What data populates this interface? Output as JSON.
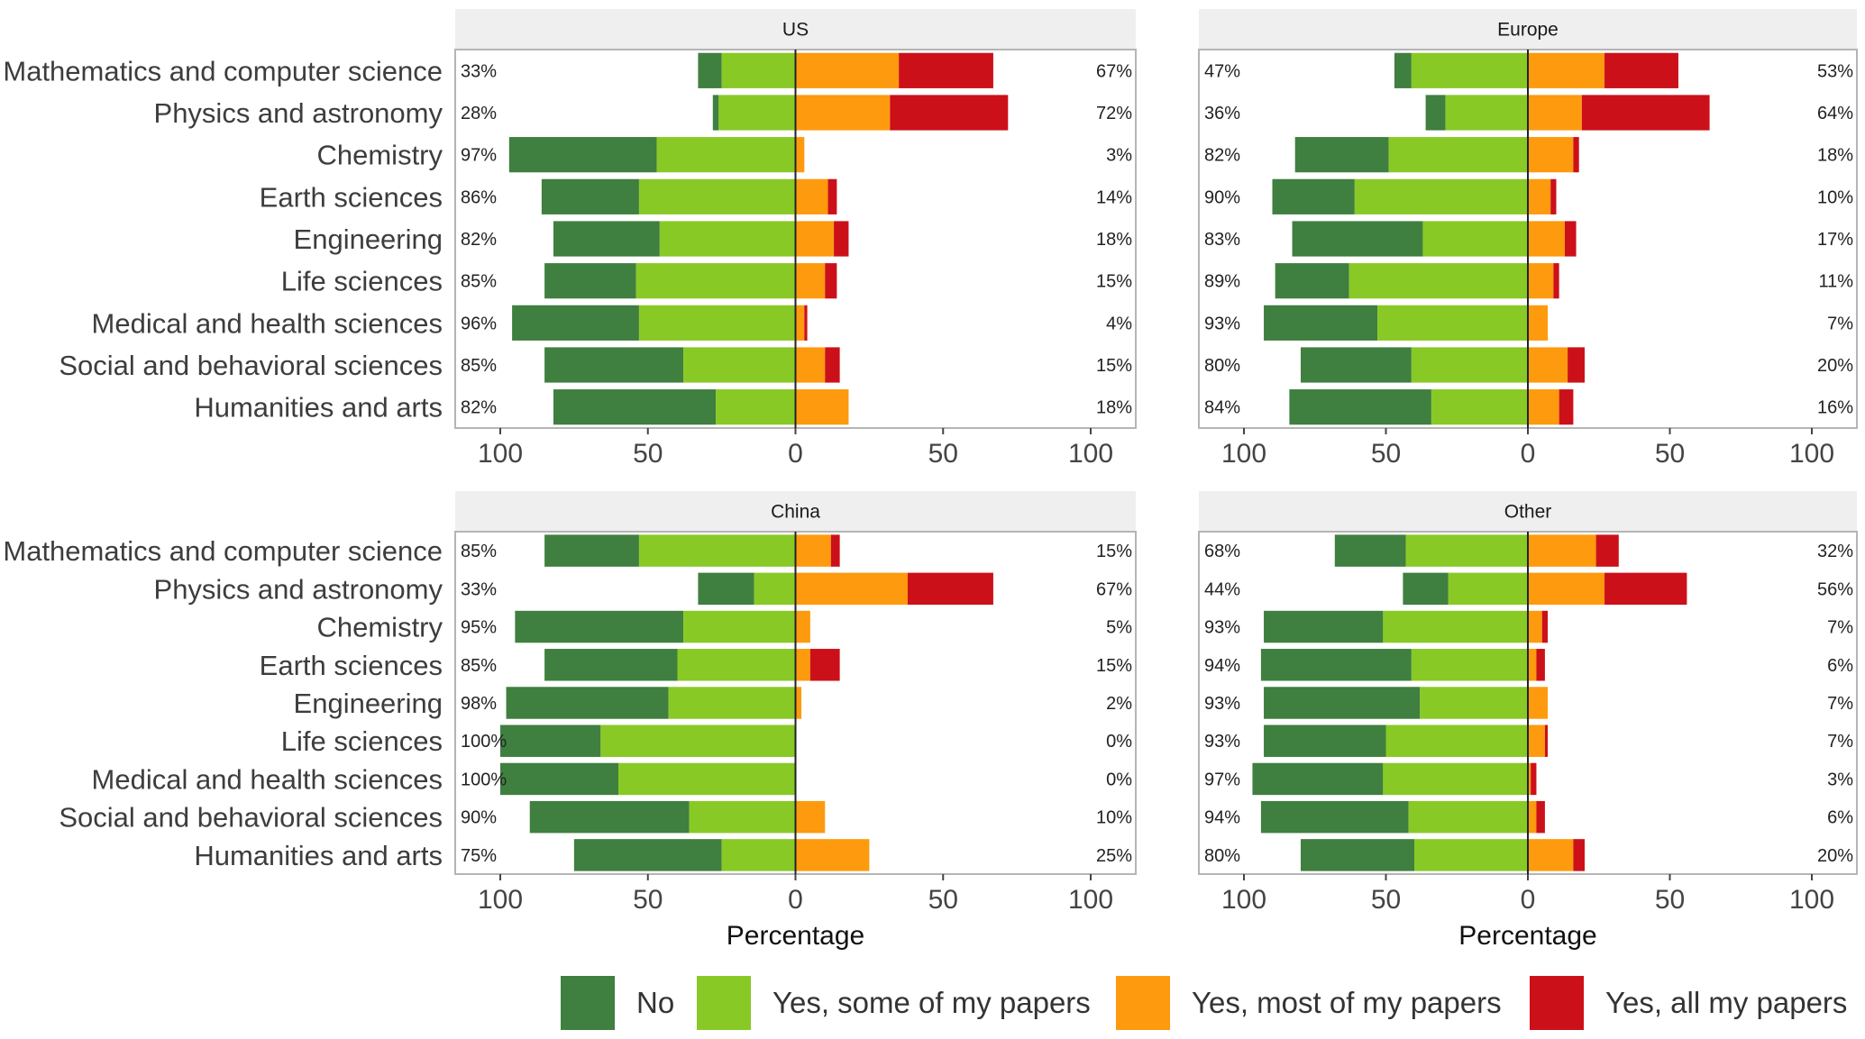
{
  "chart_data": {
    "type": "bar",
    "orientation": "horizontal-diverging",
    "xlabel": "Percentage",
    "xlim": [
      -100,
      100
    ],
    "x_ticks": [
      -100,
      -50,
      0,
      50,
      100
    ],
    "x_tick_labels": [
      "100",
      "50",
      "0",
      "50",
      "100"
    ],
    "categories": [
      "Mathematics and computer science",
      "Physics and astronomy",
      "Chemistry",
      "Earth sciences",
      "Engineering",
      "Life sciences",
      "Medical and health sciences",
      "Social and behavioral sciences",
      "Humanities and arts"
    ],
    "legend": {
      "placement": "bottom",
      "entries": [
        {
          "label": "No",
          "color": "#3f7f3f"
        },
        {
          "label": "Yes, some of my papers",
          "color": "#88c926"
        },
        {
          "label": "Yes, most of my papers",
          "color": "#fd9a0e"
        },
        {
          "label": "Yes, all my papers",
          "color": "#cc1019"
        }
      ]
    },
    "panels": [
      {
        "name": "US",
        "left_labels": [
          "33%",
          "28%",
          "97%",
          "86%",
          "82%",
          "85%",
          "96%",
          "85%",
          "82%"
        ],
        "right_labels": [
          "67%",
          "72%",
          "3%",
          "14%",
          "18%",
          "15%",
          "4%",
          "15%",
          "18%"
        ],
        "series": [
          {
            "name": "No",
            "values": [
              8,
              2,
              50,
              33,
              36,
              31,
              43,
              47,
              55
            ]
          },
          {
            "name": "Yes, some of my papers",
            "values": [
              25,
              26,
              47,
              53,
              46,
              54,
              53,
              38,
              27
            ]
          },
          {
            "name": "Yes, most of my papers",
            "values": [
              35,
              32,
              3,
              11,
              13,
              10,
              3,
              10,
              18
            ]
          },
          {
            "name": "Yes, all my papers",
            "values": [
              32,
              40,
              0,
              3,
              5,
              4,
              1,
              5,
              0
            ]
          }
        ]
      },
      {
        "name": "Europe",
        "left_labels": [
          "47%",
          "36%",
          "82%",
          "90%",
          "83%",
          "89%",
          "93%",
          "80%",
          "84%"
        ],
        "right_labels": [
          "53%",
          "64%",
          "18%",
          "10%",
          "17%",
          "11%",
          "7%",
          "20%",
          "16%"
        ],
        "series": [
          {
            "name": "No",
            "values": [
              6,
              7,
              33,
              29,
              46,
              26,
              40,
              39,
              50
            ]
          },
          {
            "name": "Yes, some of my papers",
            "values": [
              41,
              29,
              49,
              61,
              37,
              63,
              53,
              41,
              34
            ]
          },
          {
            "name": "Yes, most of my papers",
            "values": [
              27,
              19,
              16,
              8,
              13,
              9,
              7,
              14,
              11
            ]
          },
          {
            "name": "Yes, all my papers",
            "values": [
              26,
              45,
              2,
              2,
              4,
              2,
              0,
              6,
              5
            ]
          }
        ]
      },
      {
        "name": "China",
        "left_labels": [
          "85%",
          "33%",
          "95%",
          "85%",
          "98%",
          "100%",
          "100%",
          "90%",
          "75%"
        ],
        "right_labels": [
          "15%",
          "67%",
          "5%",
          "15%",
          "2%",
          "0%",
          "0%",
          "10%",
          "25%"
        ],
        "series": [
          {
            "name": "No",
            "values": [
              32,
              19,
              57,
              45,
              55,
              34,
              40,
              54,
              50
            ]
          },
          {
            "name": "Yes, some of my papers",
            "values": [
              53,
              14,
              38,
              40,
              43,
              66,
              60,
              36,
              25
            ]
          },
          {
            "name": "Yes, most of my papers",
            "values": [
              12,
              38,
              5,
              5,
              2,
              0,
              0,
              10,
              25
            ]
          },
          {
            "name": "Yes, all my papers",
            "values": [
              3,
              29,
              0,
              10,
              0,
              0,
              0,
              0,
              0
            ]
          }
        ]
      },
      {
        "name": "Other",
        "left_labels": [
          "68%",
          "44%",
          "93%",
          "94%",
          "93%",
          "93%",
          "97%",
          "94%",
          "80%"
        ],
        "right_labels": [
          "32%",
          "56%",
          "7%",
          "6%",
          "7%",
          "7%",
          "3%",
          "6%",
          "20%"
        ],
        "series": [
          {
            "name": "No",
            "values": [
              25,
              16,
              42,
              53,
              55,
              43,
              46,
              52,
              40
            ]
          },
          {
            "name": "Yes, some of my papers",
            "values": [
              43,
              28,
              51,
              41,
              38,
              50,
              51,
              42,
              40
            ]
          },
          {
            "name": "Yes, most of my papers",
            "values": [
              24,
              27,
              5,
              3,
              7,
              6,
              1,
              3,
              16
            ]
          },
          {
            "name": "Yes, all my papers",
            "values": [
              8,
              29,
              2,
              3,
              0,
              1,
              2,
              3,
              4
            ]
          }
        ]
      }
    ]
  }
}
